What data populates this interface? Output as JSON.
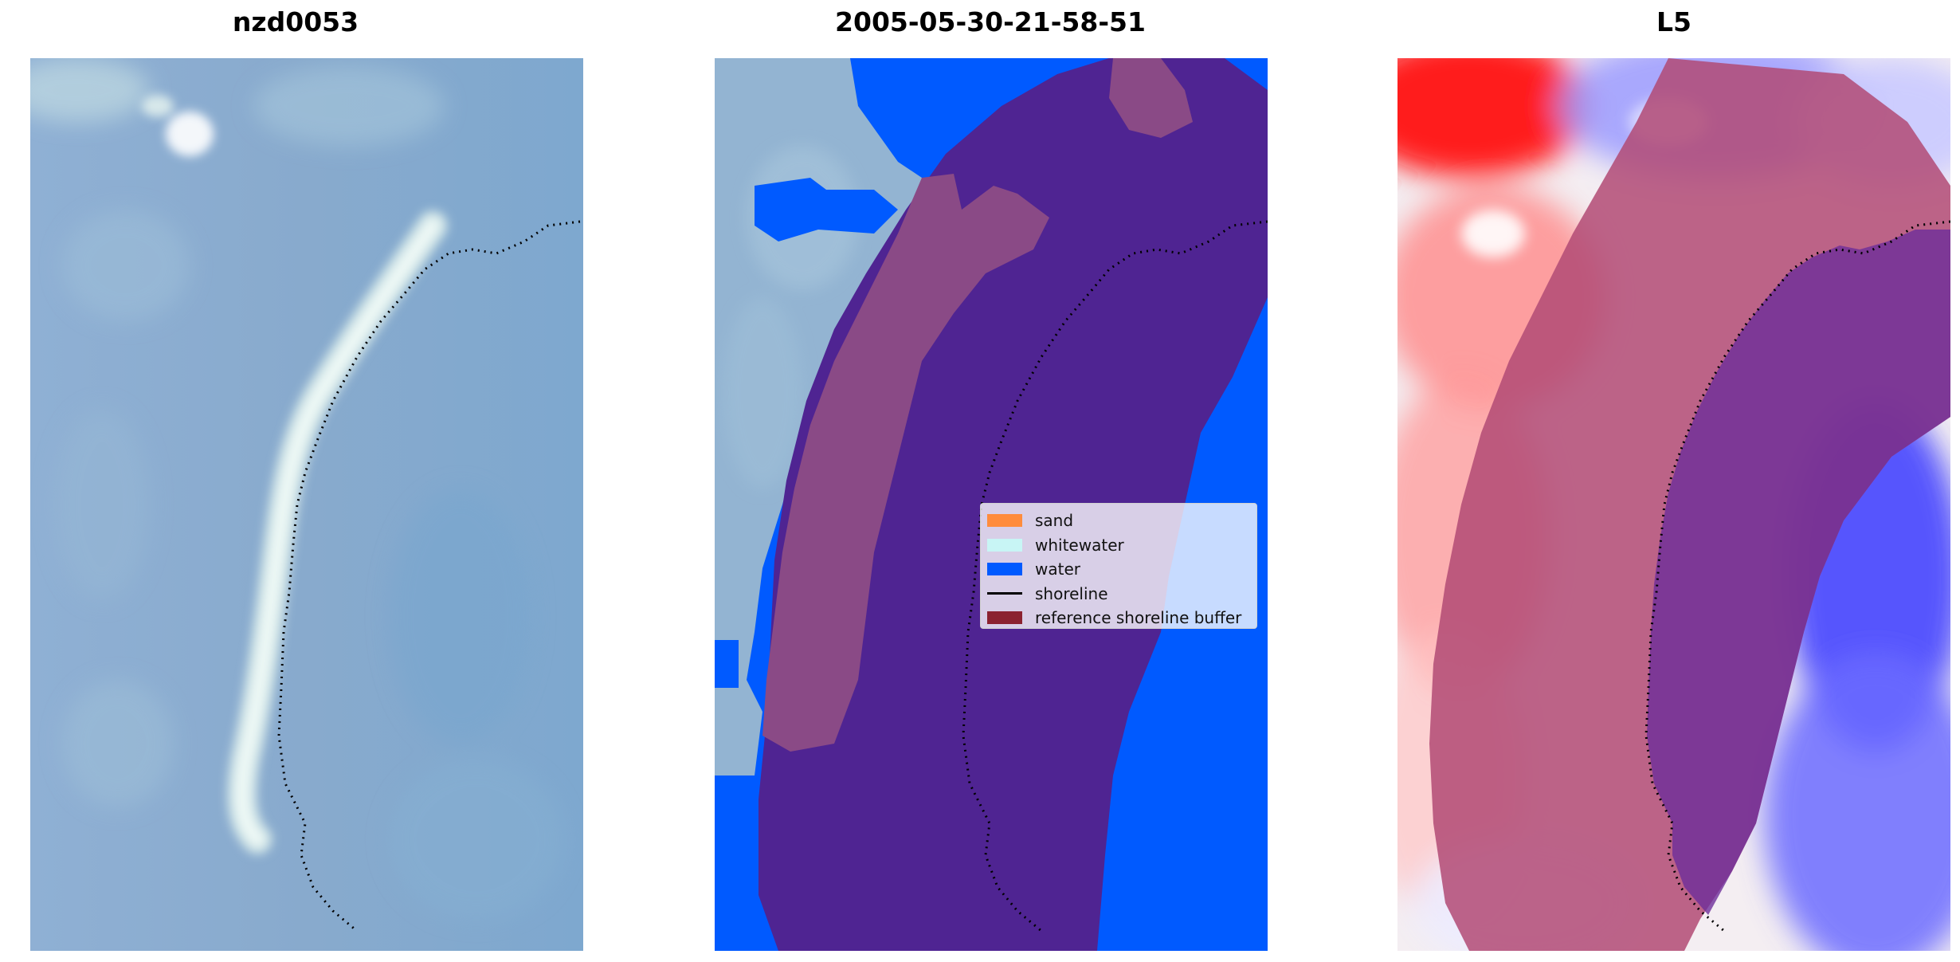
{
  "panels": [
    {
      "title": "nzd0053"
    },
    {
      "title": "2005-05-30-21-58-51"
    },
    {
      "title": "L5"
    }
  ],
  "legend": {
    "items": [
      {
        "label": "sand",
        "kind": "patch",
        "color": "#ff8c3c"
      },
      {
        "label": "whitewater",
        "kind": "patch",
        "color": "#c8f5f5"
      },
      {
        "label": "water",
        "kind": "patch",
        "color": "#005aff"
      },
      {
        "label": "shoreline",
        "kind": "line",
        "color": "#000000"
      },
      {
        "label": "reference shoreline buffer",
        "kind": "patch",
        "color": "#8b2230"
      }
    ]
  },
  "colors": {
    "rgb_base": "#86a8cf",
    "water_class": "#005aff",
    "buffer_overlay": "#4f2492",
    "buffer_over_land": "#8a4a86",
    "index_positive": "#ff0000",
    "index_negative": "#0000ff"
  }
}
